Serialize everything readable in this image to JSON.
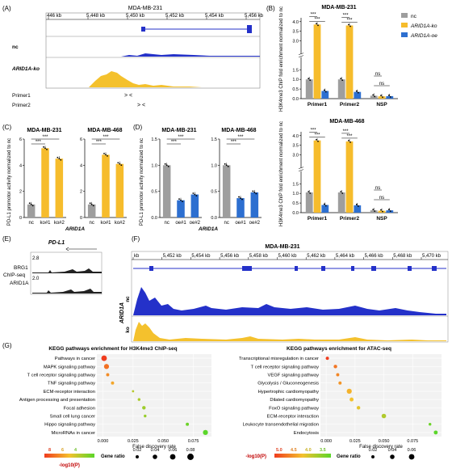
{
  "colors": {
    "nc": "#9e9e9e",
    "ko": "#f6bc2c",
    "oe": "#2d6fd0",
    "track_blue": "#2431c9",
    "track_gold": "#f4c12d",
    "star_red": "#c00000"
  },
  "panel_letters": {
    "A": "(A)",
    "B": "(B)",
    "C": "(C)",
    "D": "(D)",
    "E": "(E)",
    "F": "(F)",
    "G": "(G)"
  },
  "panelA": {
    "title": "MDA-MB-231",
    "ruler": [
      "446 kb",
      "5,448 kb",
      "5,450 kb",
      "5,452 kb",
      "5,454 kb",
      "5,456 kb"
    ],
    "track1": "nc",
    "track2": "ARID1A-ko",
    "primer1": "Primer1",
    "primer2": "Primer2",
    "primer1_marks": "> <",
    "primer2_marks": "> <"
  },
  "panelB": {
    "title_top": "MDA-MB-231",
    "title_bottom": "MDA-MB-468",
    "ylabel": "H3K4me3 ChIP fold enrichment normalized to nc",
    "legend": [
      "nc",
      "ARID1A-ko",
      "ARID1A-oe"
    ],
    "sig": "***",
    "ns": "ns"
  },
  "panelC": {
    "titles": [
      "MDA-MB-231",
      "MDA-MB-468"
    ],
    "ylabel": "PD-L1 promotor activity normalized to nc",
    "group_label": "ARID1A",
    "sig": "***"
  },
  "panelD": {
    "titles": [
      "MDA-MB-231",
      "MDA-MB-468"
    ],
    "ylabel": "PD-L1 promotor activity normalized to nc",
    "group_label": "ARID1A",
    "sig": "***"
  },
  "panelE": {
    "gene": "PD-L1",
    "side": "ChIP-seq",
    "tracks": [
      {
        "name": "BRG1",
        "scale": "2.8"
      },
      {
        "name": "ARID1A",
        "scale": "2.0"
      }
    ]
  },
  "panelF": {
    "title": "MDA-MB-231",
    "ruler": [
      "kb",
      "5,452 kb",
      "5,454 kb",
      "5,456 kb",
      "5,458 kb",
      "5,460 kb",
      "5,462 kb",
      "5,464 kb",
      "5,466 kb",
      "5,468 kb",
      "5,470 kb"
    ],
    "group": "ARID1A",
    "track1": "nc",
    "track2": "ko"
  },
  "panelG": {
    "left_title": "KEGG pathways enrichment for H3K4me3 ChIP-seq",
    "right_title": "KEGG pathways enrichment for ATAC-seq",
    "xlabel": "False discovery rate",
    "color_label": "-log10(P)",
    "size_label": "Gene ratio",
    "left_color_ticks": [
      "8",
      "6",
      "4"
    ],
    "right_color_ticks": [
      "5.0",
      "4.5",
      "4.0",
      "3.5"
    ],
    "left_size_ticks": [
      "0.02",
      "0.04",
      "0.06",
      "0.08"
    ],
    "right_size_ticks": [
      "0.02",
      "0.04",
      "0.06"
    ]
  },
  "chart_data": [
    {
      "type": "bar",
      "id": "B-231",
      "title": "MDA-MB-231",
      "categories": [
        "Primer1",
        "Primer2",
        "NSP"
      ],
      "series": [
        {
          "name": "nc",
          "values": [
            1.0,
            1.0,
            0.15
          ]
        },
        {
          "name": "ARID1A-ko",
          "values": [
            3.85,
            3.8,
            0.12
          ]
        },
        {
          "name": "ARID1A-oe",
          "values": [
            0.4,
            0.35,
            0.13
          ]
        }
      ],
      "yticks": [
        "0.0",
        "0.5",
        "1.0",
        "1.5",
        "3.0",
        "3.5",
        "4.0"
      ],
      "ylim": [
        0,
        4.2
      ]
    },
    {
      "type": "bar",
      "id": "B-468",
      "title": "MDA-MB-468",
      "categories": [
        "Primer1",
        "Primer2",
        "NSP"
      ],
      "series": [
        {
          "name": "nc",
          "values": [
            1.05,
            1.05,
            0.12
          ]
        },
        {
          "name": "ARID1A-ko",
          "values": [
            3.75,
            3.7,
            0.1
          ]
        },
        {
          "name": "ARID1A-oe",
          "values": [
            0.4,
            0.38,
            0.12
          ]
        }
      ],
      "yticks": [
        "0.0",
        "0.5",
        "1.0",
        "1.5",
        "3.0",
        "3.5",
        "4.0"
      ],
      "ylim": [
        0,
        4.2
      ]
    },
    {
      "type": "bar",
      "id": "C-231",
      "title": "MDA-MB-231",
      "categories": [
        "nc",
        "ko#1",
        "ko#2"
      ],
      "values": [
        1.0,
        5.3,
        4.5
      ],
      "yticks": [
        "0",
        "2",
        "4",
        "6"
      ],
      "ylim": [
        0,
        6
      ]
    },
    {
      "type": "bar",
      "id": "C-468",
      "title": "MDA-MB-468",
      "categories": [
        "nc",
        "ko#1",
        "ko#2"
      ],
      "values": [
        1.0,
        4.8,
        4.1
      ],
      "yticks": [
        "0",
        "2",
        "4",
        "6"
      ],
      "ylim": [
        0,
        6
      ]
    },
    {
      "type": "bar",
      "id": "D-231",
      "title": "MDA-MB-231",
      "categories": [
        "nc",
        "oe#1",
        "oe#2"
      ],
      "values": [
        1.0,
        0.33,
        0.44
      ],
      "yticks": [
        "0.0",
        "0.5",
        "1.0",
        "1.5"
      ],
      "ylim": [
        0,
        1.5
      ]
    },
    {
      "type": "bar",
      "id": "D-468",
      "title": "MDA-MB-468",
      "categories": [
        "nc",
        "oe#1",
        "oe#2"
      ],
      "values": [
        1.0,
        0.37,
        0.48
      ],
      "yticks": [
        "0.0",
        "0.5",
        "1.0",
        "1.5"
      ],
      "ylim": [
        0,
        1.5
      ]
    },
    {
      "type": "scatter",
      "id": "G-left",
      "title": "KEGG pathways enrichment for H3K4me3 ChIP-seq",
      "xlabel": "False discovery rate",
      "xticks": [
        "0.000",
        "0.025",
        "0.050",
        "0.075"
      ],
      "xlim": [
        -0.005,
        0.09
      ],
      "categories": [
        "Pathways in cancer",
        "MAPK signaling pathway",
        "T cell receptor signaling pathway",
        "TNF signaling pathway",
        "ECM-receptor interaction",
        "Antigen processing and presentation",
        "Focal adhesion",
        "Small cell lung cancer",
        "Hippo signaling pathway",
        "MicroRNAs in cancer"
      ],
      "x": [
        0.001,
        0.003,
        0.004,
        0.008,
        0.025,
        0.03,
        0.034,
        0.035,
        0.07,
        0.085
      ],
      "gene_ratio": [
        0.06,
        0.05,
        0.02,
        0.02,
        0.01,
        0.015,
        0.025,
        0.015,
        0.02,
        0.05
      ],
      "neglog10p": [
        8.5,
        7.5,
        7.0,
        6.5,
        5.0,
        4.8,
        4.6,
        4.5,
        3.8,
        3.5
      ]
    },
    {
      "type": "scatter",
      "id": "G-right",
      "title": "KEGG pathways enrichment for ATAC-seq",
      "xlabel": "False discovery rate",
      "xticks": [
        "0.000",
        "0.025",
        "0.050",
        "0.075"
      ],
      "xlim": [
        -0.005,
        0.1
      ],
      "categories": [
        "Transcriptional misregulation in cancer",
        "T cell receptor signaling pathway",
        "VEGF signaling pathway",
        "Glycolysis / Gluconeogenesis",
        "Hypertrophic cardiomyopathy",
        "Dilated cardiomyopathy",
        "FoxO signaling pathway",
        "ECM-receptor interaction",
        "Leukocyte transendothelial migration",
        "Endocytosis"
      ],
      "x": [
        0.001,
        0.008,
        0.01,
        0.012,
        0.02,
        0.022,
        0.028,
        0.05,
        0.09,
        0.095
      ],
      "gene_ratio": [
        0.02,
        0.025,
        0.02,
        0.02,
        0.05,
        0.03,
        0.025,
        0.04,
        0.015,
        0.03
      ],
      "neglog10p": [
        5.2,
        4.8,
        4.7,
        4.6,
        4.4,
        4.3,
        4.2,
        3.9,
        3.5,
        3.4
      ]
    }
  ]
}
